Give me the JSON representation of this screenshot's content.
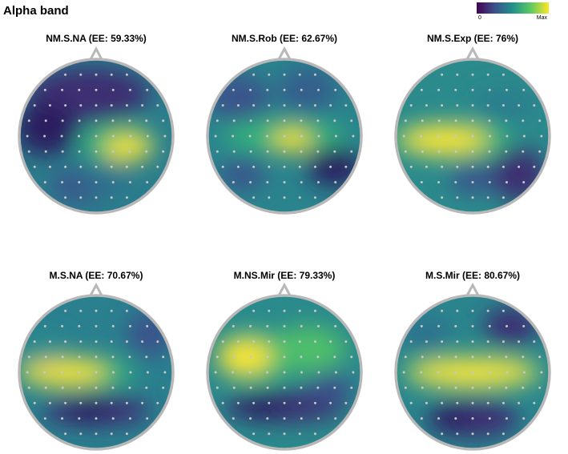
{
  "title": "Alpha band",
  "colorbar": {
    "min_label": "0",
    "max_label": "Max"
  },
  "panels": [
    {
      "title": "NM.S.NA (EE: 59.33%)"
    },
    {
      "title": "NM.S.Rob (EE: 62.67%)"
    },
    {
      "title": "NM.S.Exp (EE: 76%)"
    },
    {
      "title": "M.S.NA (EE: 70.67%)"
    },
    {
      "title": "M.NS.Mir (EE: 79.33%)"
    },
    {
      "title": "M.S.Mir (EE: 80.67%)"
    }
  ]
}
